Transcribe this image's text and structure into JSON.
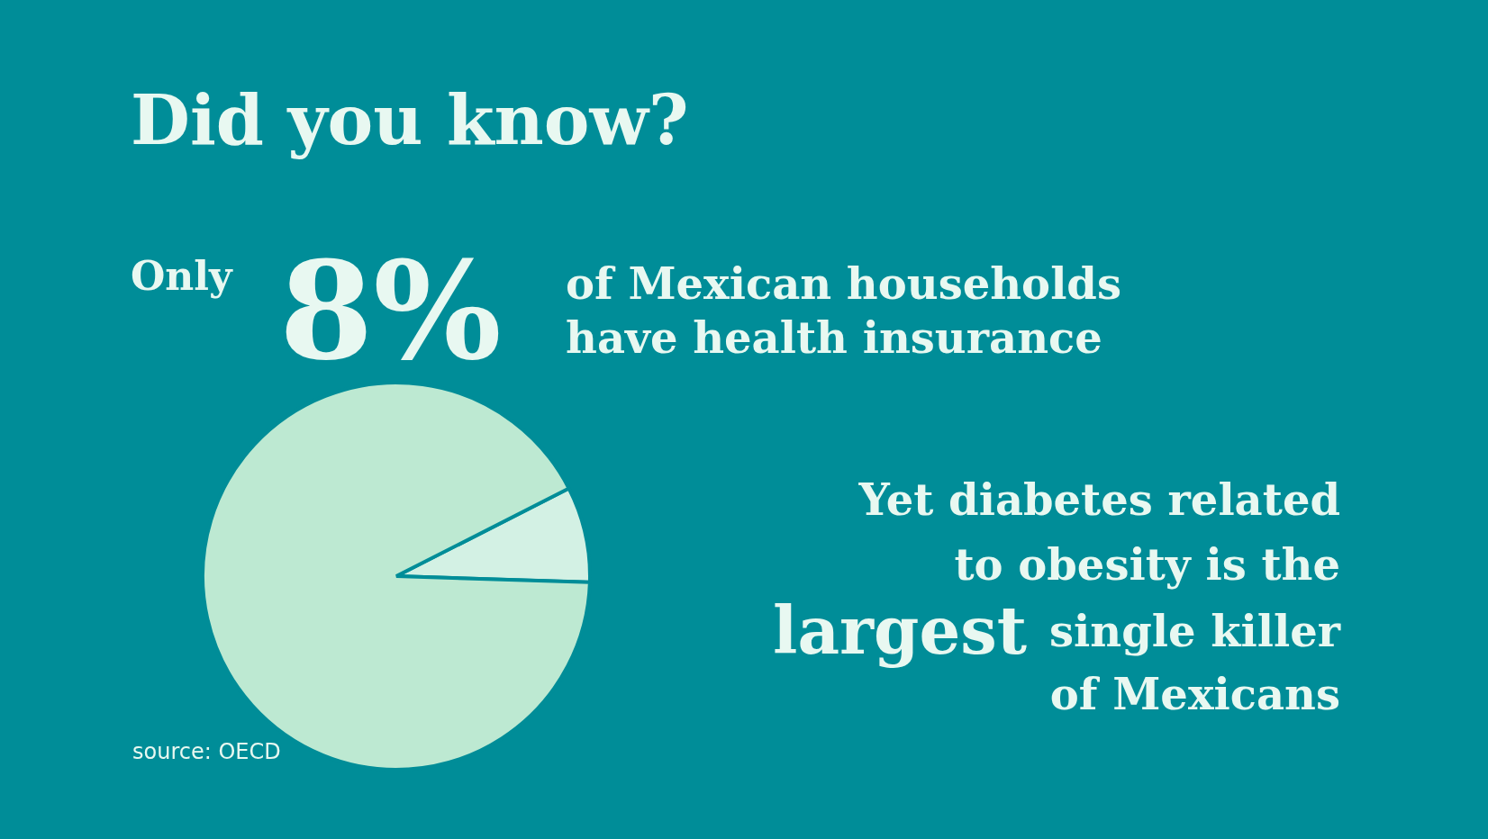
{
  "chart_data": {
    "type": "pie",
    "title": "Did you know?",
    "categories": [
      null,
      null
    ],
    "values": [
      8,
      92
    ],
    "colors": [
      "#d3f1e4",
      "#bde9d2"
    ],
    "annotations": [
      "Only",
      "8%",
      "of Mexican households",
      "have health insurance",
      "Yet diabetes related",
      "to obesity is the",
      "largest",
      "single killer",
      "of Mexicans",
      "source: OECD"
    ]
  }
}
